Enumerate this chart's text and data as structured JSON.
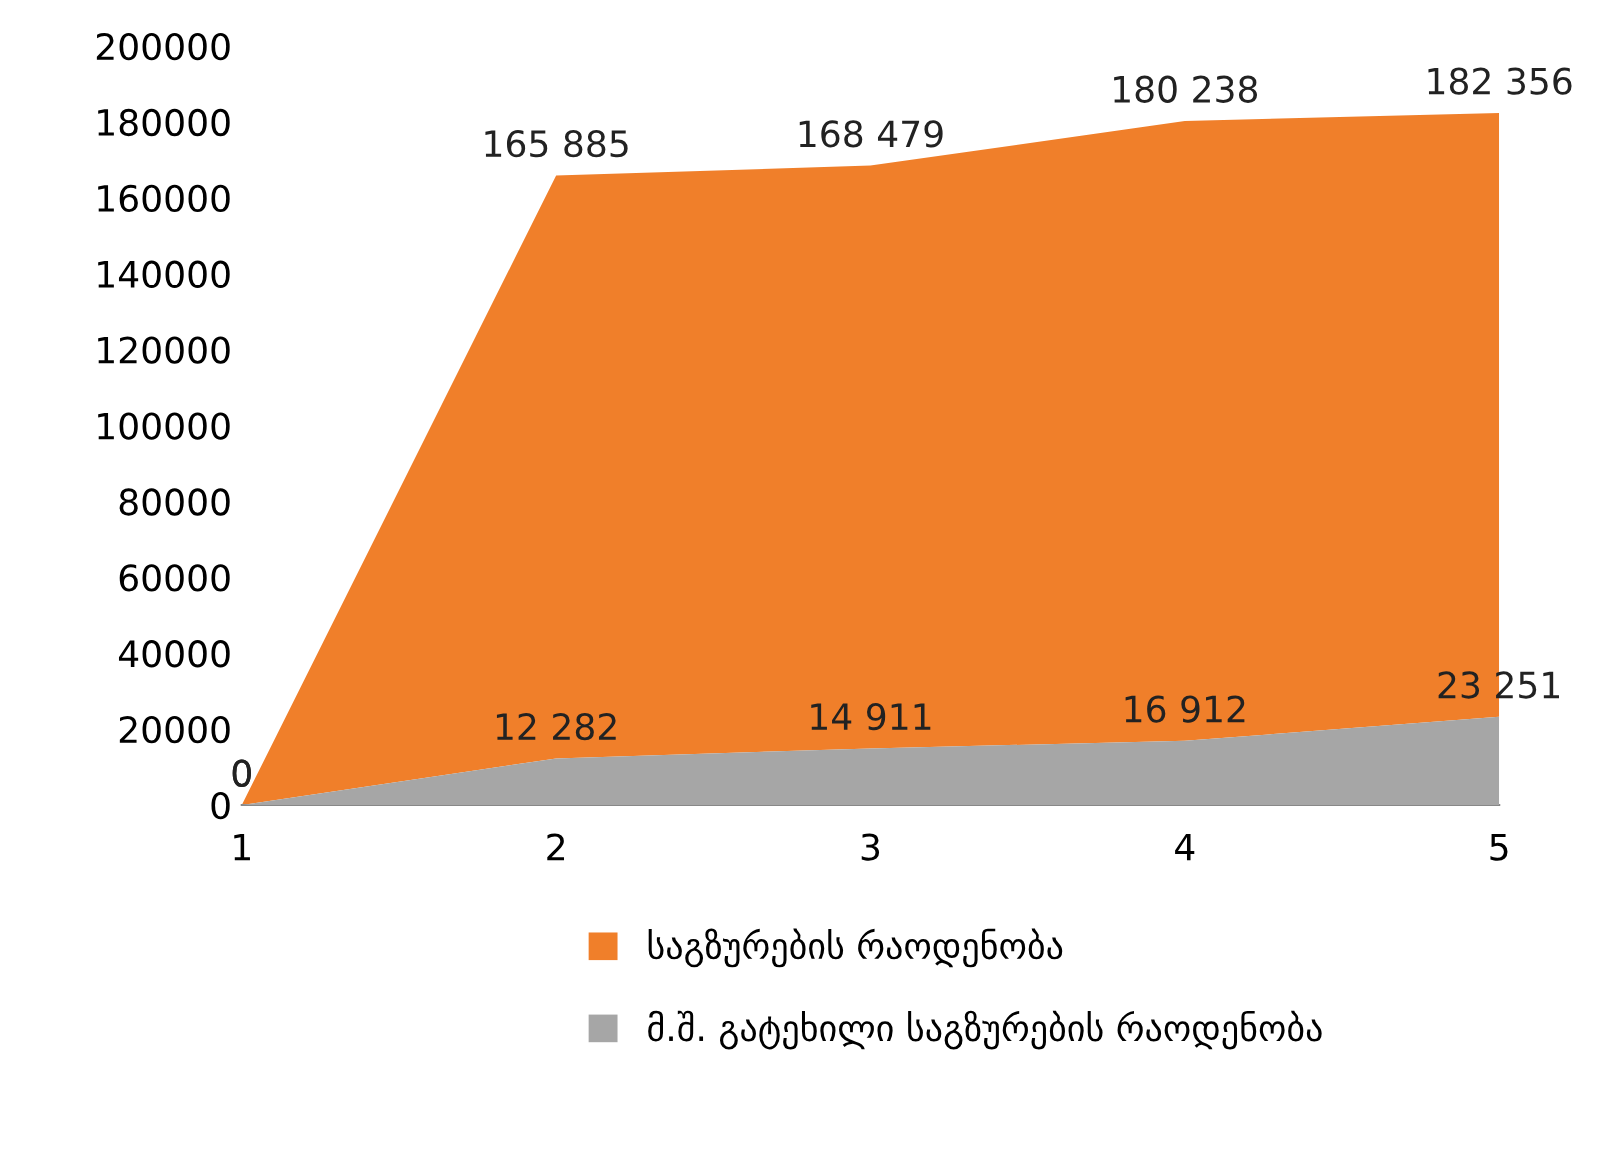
{
  "chart_data": {
    "type": "area",
    "categories": [
      "1",
      "2",
      "3",
      "4",
      "5"
    ],
    "series": [
      {
        "name": "საგზურების რაოდენობა",
        "color": "#f07f2a",
        "values": [
          0,
          165885,
          168479,
          180238,
          182356
        ],
        "value_labels": [
          "0",
          "165 885",
          "168 479",
          "180 238",
          "182 356"
        ]
      },
      {
        "name": "მ.შ. გატეხილი საგზურების რაოდენობა",
        "color": "#a6a6a6",
        "values": [
          0,
          12282,
          14911,
          16912,
          23251
        ],
        "value_labels": [
          "0",
          "12 282",
          "14 911",
          "16 912",
          "23 251"
        ]
      }
    ],
    "ylim": [
      0,
      200000
    ],
    "yticks": [
      0,
      20000,
      40000,
      60000,
      80000,
      100000,
      120000,
      140000,
      160000,
      180000,
      200000
    ],
    "legend": "bottom",
    "grid": false
  }
}
